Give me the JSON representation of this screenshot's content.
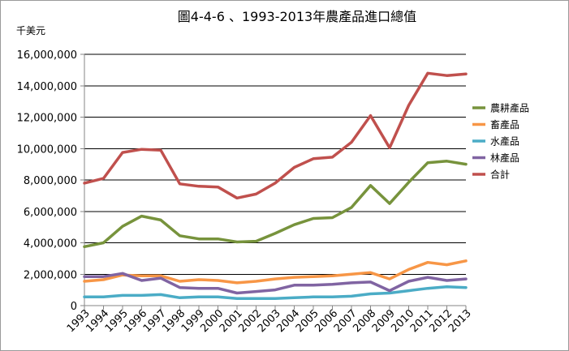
{
  "chart_data": {
    "type": "line",
    "title": "圖4-4-6 、1993-2013年農產品進口總值",
    "ylabel": "千美元",
    "xlabel": "",
    "categories": [
      "1993",
      "1994",
      "1995",
      "1996",
      "1997",
      "1998",
      "1999",
      "2000",
      "2001",
      "2002",
      "2003",
      "2004",
      "2005",
      "2006",
      "2007",
      "2008",
      "2009",
      "2010",
      "2011",
      "2012",
      "2013"
    ],
    "ylim": [
      0,
      16000000
    ],
    "yticks": [
      0,
      2000000,
      4000000,
      6000000,
      8000000,
      10000000,
      12000000,
      14000000,
      16000000
    ],
    "ytick_labels": [
      "0",
      "2,000,000",
      "4,000,000",
      "6,000,000",
      "8,000,000",
      "10,000,000",
      "12,000,000",
      "14,000,000",
      "16,000,000"
    ],
    "grid": "horizontal major gridlines",
    "legend_position": "right",
    "series": [
      {
        "name": "農耕產品",
        "color": "#77933c",
        "values": [
          3750000,
          4000000,
          5050000,
          5700000,
          5450000,
          4450000,
          4250000,
          4250000,
          4050000,
          4100000,
          4600000,
          5150000,
          5550000,
          5600000,
          6250000,
          7650000,
          6500000,
          7850000,
          9100000,
          9200000,
          9000000
        ]
      },
      {
        "name": "畜產品",
        "color": "#f79646",
        "values": [
          1550000,
          1650000,
          1950000,
          1900000,
          1900000,
          1550000,
          1650000,
          1600000,
          1450000,
          1550000,
          1700000,
          1800000,
          1850000,
          1900000,
          2000000,
          2100000,
          1700000,
          2300000,
          2750000,
          2600000,
          2850000
        ]
      },
      {
        "name": "水產品",
        "color": "#4bacc6",
        "values": [
          550000,
          550000,
          650000,
          650000,
          700000,
          500000,
          550000,
          550000,
          450000,
          450000,
          450000,
          500000,
          550000,
          550000,
          600000,
          750000,
          800000,
          950000,
          1100000,
          1200000,
          1150000
        ]
      },
      {
        "name": "林產品",
        "color": "#8064a2",
        "values": [
          1850000,
          1850000,
          2050000,
          1600000,
          1750000,
          1150000,
          1100000,
          1100000,
          800000,
          900000,
          1000000,
          1300000,
          1300000,
          1350000,
          1450000,
          1500000,
          950000,
          1550000,
          1800000,
          1600000,
          1700000
        ]
      },
      {
        "name": "合計",
        "color": "#c0504d",
        "values": [
          7800000,
          8100000,
          9750000,
          9950000,
          9900000,
          7750000,
          7600000,
          7550000,
          6850000,
          7100000,
          7800000,
          8800000,
          9350000,
          9450000,
          10400000,
          12100000,
          10050000,
          12750000,
          14800000,
          14650000,
          14750000
        ]
      }
    ]
  }
}
